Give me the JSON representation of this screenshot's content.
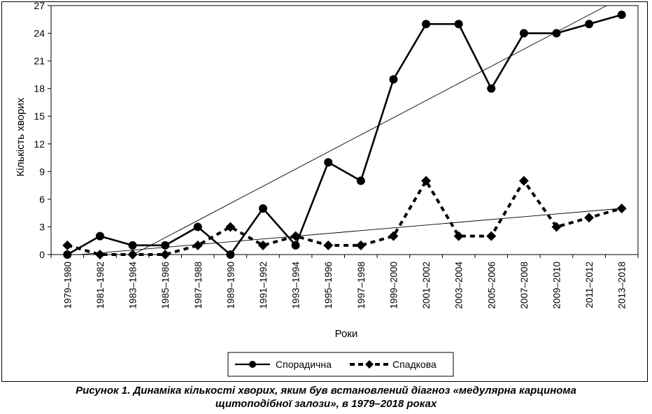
{
  "caption": {
    "line1": "Рисунок 1. Динаміка кількості хворих, яким був встановлений діагноз «медулярна карцинома",
    "line2": "щитоподібної залози», в 1979–2018 роках"
  },
  "chart_data": {
    "type": "line",
    "xlabel": "Роки",
    "ylabel": "Кількість хворих",
    "ylim": [
      0,
      27
    ],
    "yticks": [
      0,
      3,
      6,
      9,
      12,
      15,
      18,
      21,
      24,
      27
    ],
    "categories": [
      "1979–1980",
      "1981–1982",
      "1983–1984",
      "1985–1986",
      "1987–1988",
      "1989–1990",
      "1991–1992",
      "1993–1994",
      "1995–1996",
      "1997–1998",
      "1999–2000",
      "2001–2002",
      "2003–2004",
      "2005–2006",
      "2007–2008",
      "2009–2010",
      "2011–2012",
      "2013–2018"
    ],
    "series": [
      {
        "name": "Спорадична",
        "style": "solid",
        "marker": "circle",
        "values": [
          0,
          2,
          1,
          1,
          3,
          0,
          5,
          1,
          10,
          8,
          19,
          25,
          25,
          18,
          24,
          24,
          25,
          26
        ]
      },
      {
        "name": "Спадкова",
        "style": "dashed",
        "marker": "diamond",
        "values": [
          1,
          0,
          0,
          0,
          1,
          3,
          1,
          2,
          1,
          1,
          2,
          8,
          2,
          2,
          8,
          3,
          4,
          5
        ]
      }
    ],
    "trendlines": true,
    "grid": false,
    "legend": "bottom",
    "color": "#000000"
  }
}
